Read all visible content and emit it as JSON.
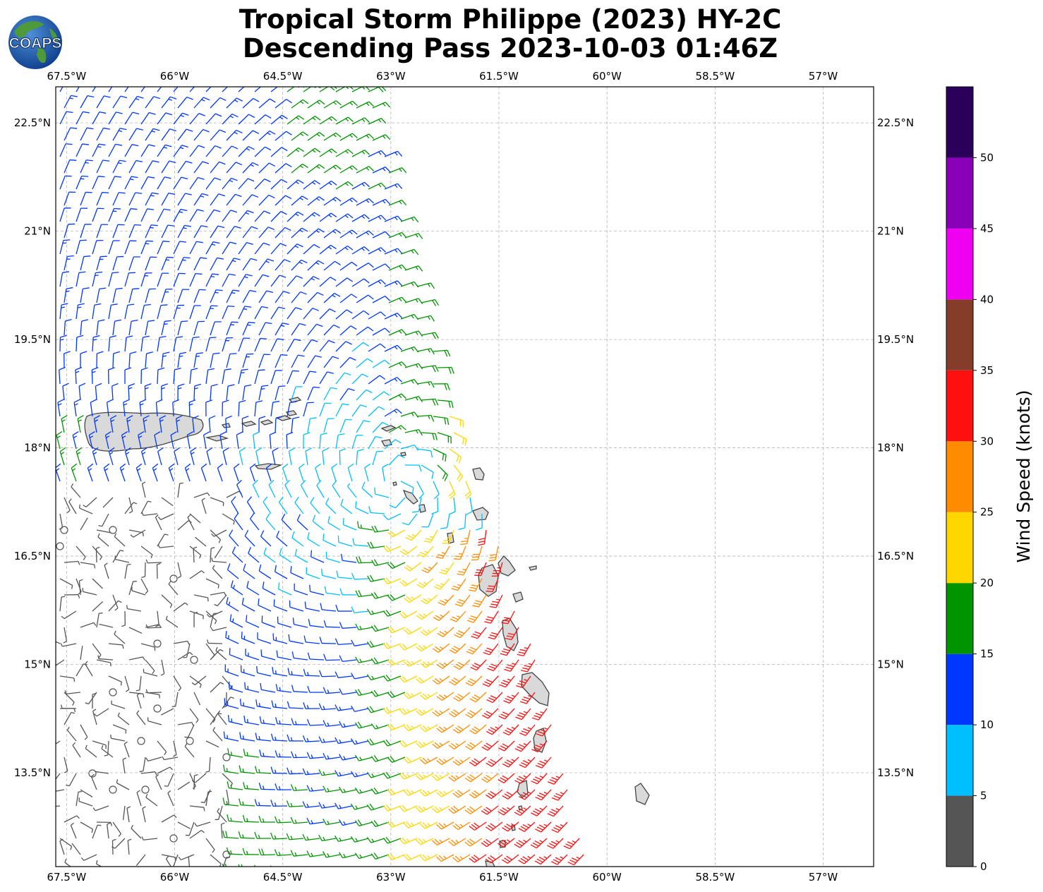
{
  "title": {
    "line1": "Tropical Storm Philippe (2023) HY-2C",
    "line2": "Descending Pass 2023-10-03 01:46Z"
  },
  "logo": {
    "text": "COAPS",
    "icon": "globe-icon"
  },
  "map": {
    "lon_ticks": [
      "67.5°W",
      "66°W",
      "64.5°W",
      "63°W",
      "61.5°W",
      "60°W",
      "58.5°W",
      "57°W"
    ],
    "lat_ticks": [
      "22.5°N",
      "21°N",
      "19.5°N",
      "18°N",
      "16.5°N",
      "15°N",
      "13.5°N"
    ],
    "lon_values": [
      -67.5,
      -66,
      -64.5,
      -63,
      -61.5,
      -60,
      -58.5,
      -57
    ],
    "lat_values": [
      22.5,
      21,
      19.5,
      18,
      16.5,
      15,
      13.5
    ],
    "lon_range": [
      -67.65,
      -56.3
    ],
    "lat_range": [
      12.2,
      23.0
    ],
    "gridlines": true,
    "land_outline_color": "#444444",
    "land_fill_color": "#d9d9d9"
  },
  "colorbar": {
    "label": "Wind Speed (knots)",
    "ticks": [
      "0",
      "5",
      "10",
      "15",
      "20",
      "25",
      "30",
      "35",
      "40",
      "45",
      "50"
    ],
    "bins": [
      {
        "min": 0,
        "max": 5,
        "color": "#555555"
      },
      {
        "min": 5,
        "max": 10,
        "color": "#00bfff"
      },
      {
        "min": 10,
        "max": 15,
        "color": "#0037ff"
      },
      {
        "min": 15,
        "max": 20,
        "color": "#009400"
      },
      {
        "min": 20,
        "max": 25,
        "color": "#ffd700"
      },
      {
        "min": 25,
        "max": 30,
        "color": "#ff8c00"
      },
      {
        "min": 30,
        "max": 35,
        "color": "#ff1010"
      },
      {
        "min": 35,
        "max": 40,
        "color": "#853d2a"
      },
      {
        "min": 40,
        "max": 45,
        "color": "#f000f0"
      },
      {
        "min": 45,
        "max": 50,
        "color": "#8a00b8"
      },
      {
        "min": 50,
        "max": 55,
        "color": "#2a005a"
      }
    ]
  },
  "storm_center": {
    "lon": -62.9,
    "lat": 17.5
  }
}
